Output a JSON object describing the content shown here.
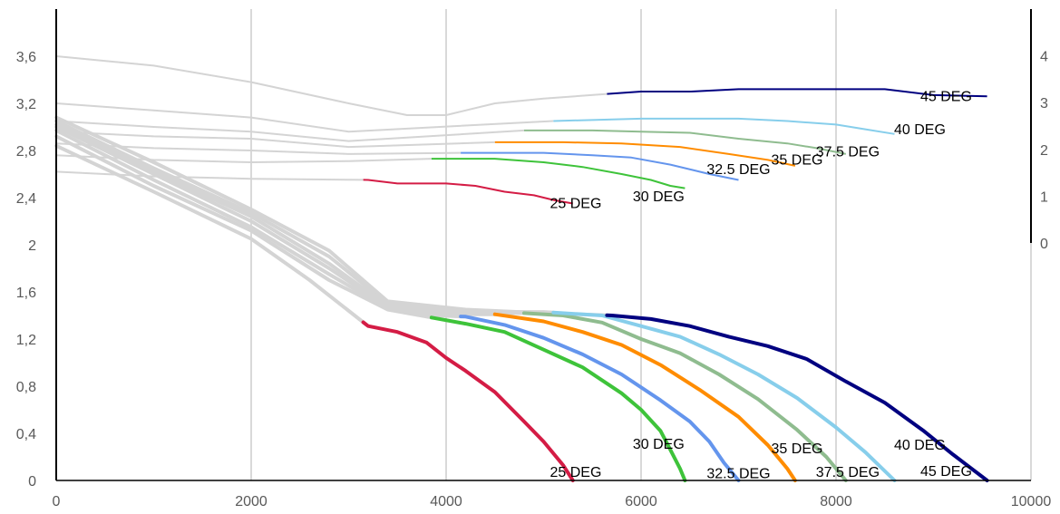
{
  "chart_data": {
    "type": "line",
    "title": "",
    "xlabel": "",
    "ylabel": "",
    "xlim": [
      0,
      10000
    ],
    "ylim": [
      0,
      4.0
    ],
    "y2lim": [
      0,
      5
    ],
    "grid": "vertical",
    "x_ticks": [
      0,
      2000,
      4000,
      6000,
      8000,
      10000
    ],
    "y_ticks": [
      0,
      0.4,
      0.8,
      1.2,
      1.6,
      2,
      2.4,
      2.8,
      3.2,
      3.6
    ],
    "y_tick_labels": [
      "0",
      "0,4",
      "0,8",
      "1,2",
      "1,6",
      "2",
      "2,4",
      "2,8",
      "3,2",
      "3,6"
    ],
    "y2_ticks": [
      0,
      1,
      2,
      3,
      4
    ],
    "y2_tick_labels": [
      "0",
      "1",
      "2",
      "3",
      "4"
    ],
    "series": [
      {
        "name": "25 DEG",
        "color": "#d41c45",
        "lower": [
          [
            0,
            2.84
          ],
          [
            1000,
            2.45
          ],
          [
            2000,
            2.05
          ],
          [
            2600,
            1.7
          ],
          [
            3200,
            1.31
          ],
          [
            3500,
            1.26
          ],
          [
            3800,
            1.17
          ],
          [
            4000,
            1.04
          ],
          [
            4200,
            0.93
          ],
          [
            4500,
            0.75
          ],
          [
            4800,
            0.5
          ],
          [
            5000,
            0.33
          ],
          [
            5200,
            0.13
          ],
          [
            5300,
            0.0
          ]
        ],
        "upper": [
          [
            0,
            2.62
          ],
          [
            1000,
            2.58
          ],
          [
            2000,
            2.56
          ],
          [
            3200,
            2.55
          ],
          [
            3500,
            2.52
          ],
          [
            4000,
            2.52
          ],
          [
            4300,
            2.5
          ],
          [
            4600,
            2.45
          ],
          [
            4900,
            2.42
          ],
          [
            5100,
            2.38
          ],
          [
            5300,
            2.35
          ]
        ],
        "split_x": 3150,
        "label_upper": {
          "x": 5330,
          "y": 2.31
        },
        "label_lower": {
          "x": 5330,
          "y": 0.03
        }
      },
      {
        "name": "30 DEG",
        "color": "#3ec33a",
        "lower": [
          [
            0,
            2.92
          ],
          [
            1000,
            2.5
          ],
          [
            2000,
            2.12
          ],
          [
            2800,
            1.7
          ],
          [
            3400,
            1.45
          ],
          [
            3800,
            1.39
          ],
          [
            4200,
            1.33
          ],
          [
            4600,
            1.26
          ],
          [
            5000,
            1.11
          ],
          [
            5400,
            0.96
          ],
          [
            5800,
            0.74
          ],
          [
            6000,
            0.6
          ],
          [
            6200,
            0.42
          ],
          [
            6300,
            0.26
          ],
          [
            6400,
            0.1
          ],
          [
            6450,
            0.0
          ]
        ],
        "upper": [
          [
            0,
            2.76
          ],
          [
            1000,
            2.72
          ],
          [
            2000,
            2.7
          ],
          [
            3000,
            2.71
          ],
          [
            3850,
            2.73
          ],
          [
            4500,
            2.73
          ],
          [
            5000,
            2.7
          ],
          [
            5400,
            2.66
          ],
          [
            5800,
            2.6
          ],
          [
            6100,
            2.55
          ],
          [
            6300,
            2.5
          ],
          [
            6450,
            2.48
          ]
        ],
        "split_x": 3850,
        "label_upper": {
          "x": 6180,
          "y": 2.37
        },
        "label_lower": {
          "x": 6180,
          "y": 0.27
        }
      },
      {
        "name": "32.5 DEG",
        "color": "#6495ed",
        "lower": [
          [
            0,
            2.97
          ],
          [
            1000,
            2.55
          ],
          [
            2000,
            2.15
          ],
          [
            2800,
            1.75
          ],
          [
            3400,
            1.46
          ],
          [
            3900,
            1.4
          ],
          [
            4200,
            1.39
          ],
          [
            4600,
            1.32
          ],
          [
            5000,
            1.21
          ],
          [
            5400,
            1.07
          ],
          [
            5800,
            0.9
          ],
          [
            6200,
            0.68
          ],
          [
            6500,
            0.5
          ],
          [
            6700,
            0.33
          ],
          [
            6850,
            0.15
          ],
          [
            7000,
            0.0
          ]
        ],
        "upper": [
          [
            0,
            2.86
          ],
          [
            1000,
            2.82
          ],
          [
            2000,
            2.8
          ],
          [
            3000,
            2.77
          ],
          [
            4150,
            2.78
          ],
          [
            5000,
            2.78
          ],
          [
            5500,
            2.76
          ],
          [
            5900,
            2.74
          ],
          [
            6300,
            2.68
          ],
          [
            6700,
            2.6
          ],
          [
            7000,
            2.55
          ]
        ],
        "split_x": 4150,
        "label_upper": {
          "x": 7000,
          "y": 2.6
        },
        "label_lower": {
          "x": 7000,
          "y": 0.02
        }
      },
      {
        "name": "35 DEG",
        "color": "#ff8c00",
        "lower": [
          [
            0,
            3.0
          ],
          [
            1000,
            2.6
          ],
          [
            2000,
            2.2
          ],
          [
            2800,
            1.8
          ],
          [
            3400,
            1.47
          ],
          [
            4000,
            1.41
          ],
          [
            4500,
            1.41
          ],
          [
            5000,
            1.35
          ],
          [
            5400,
            1.26
          ],
          [
            5800,
            1.15
          ],
          [
            6200,
            0.98
          ],
          [
            6600,
            0.77
          ],
          [
            7000,
            0.54
          ],
          [
            7300,
            0.3
          ],
          [
            7500,
            0.1
          ],
          [
            7580,
            0.0
          ]
        ],
        "upper": [
          [
            0,
            2.96
          ],
          [
            1000,
            2.92
          ],
          [
            2000,
            2.9
          ],
          [
            3000,
            2.83
          ],
          [
            4500,
            2.87
          ],
          [
            5200,
            2.87
          ],
          [
            5800,
            2.86
          ],
          [
            6400,
            2.83
          ],
          [
            6900,
            2.77
          ],
          [
            7300,
            2.72
          ],
          [
            7580,
            2.67
          ]
        ],
        "split_x": 4500,
        "label_upper": {
          "x": 7600,
          "y": 2.68
        },
        "label_lower": {
          "x": 7600,
          "y": 0.23
        }
      },
      {
        "name": "37.5 DEG",
        "color": "#8fbc8f",
        "lower": [
          [
            0,
            3.02
          ],
          [
            1000,
            2.62
          ],
          [
            2000,
            2.24
          ],
          [
            2800,
            1.84
          ],
          [
            3400,
            1.48
          ],
          [
            4200,
            1.42
          ],
          [
            4800,
            1.42
          ],
          [
            5200,
            1.4
          ],
          [
            5600,
            1.34
          ],
          [
            6000,
            1.2
          ],
          [
            6400,
            1.08
          ],
          [
            6800,
            0.9
          ],
          [
            7200,
            0.69
          ],
          [
            7600,
            0.43
          ],
          [
            7900,
            0.2
          ],
          [
            8100,
            0.0
          ]
        ],
        "upper": [
          [
            0,
            3.05
          ],
          [
            1000,
            3.0
          ],
          [
            2000,
            2.96
          ],
          [
            3000,
            2.88
          ],
          [
            4800,
            2.97
          ],
          [
            5500,
            2.97
          ],
          [
            6000,
            2.96
          ],
          [
            6500,
            2.95
          ],
          [
            7000,
            2.9
          ],
          [
            7500,
            2.86
          ],
          [
            7800,
            2.82
          ],
          [
            8100,
            2.77
          ]
        ],
        "split_x": 4800,
        "label_upper": {
          "x": 8120,
          "y": 2.75
        },
        "label_lower": {
          "x": 8120,
          "y": 0.03
        }
      },
      {
        "name": "40 DEG",
        "color": "#87ceeb",
        "lower": [
          [
            0,
            3.05
          ],
          [
            1000,
            2.65
          ],
          [
            2000,
            2.27
          ],
          [
            2800,
            1.9
          ],
          [
            3400,
            1.5
          ],
          [
            4200,
            1.43
          ],
          [
            5000,
            1.43
          ],
          [
            5600,
            1.4
          ],
          [
            6000,
            1.31
          ],
          [
            6400,
            1.22
          ],
          [
            6800,
            1.07
          ],
          [
            7200,
            0.9
          ],
          [
            7600,
            0.7
          ],
          [
            8000,
            0.45
          ],
          [
            8300,
            0.24
          ],
          [
            8600,
            0.0
          ]
        ],
        "upper": [
          [
            0,
            3.2
          ],
          [
            1000,
            3.14
          ],
          [
            2000,
            3.08
          ],
          [
            3000,
            2.96
          ],
          [
            5100,
            3.05
          ],
          [
            6000,
            3.07
          ],
          [
            7000,
            3.07
          ],
          [
            7500,
            3.05
          ],
          [
            8000,
            3.02
          ],
          [
            8300,
            2.98
          ],
          [
            8600,
            2.94
          ]
        ],
        "split_x": 5100,
        "label_upper": {
          "x": 8860,
          "y": 2.94
        },
        "label_lower": {
          "x": 8860,
          "y": 0.26
        }
      },
      {
        "name": "45 DEG",
        "color": "#000080",
        "lower": [
          [
            0,
            3.08
          ],
          [
            1000,
            2.7
          ],
          [
            2000,
            2.3
          ],
          [
            2800,
            1.95
          ],
          [
            3400,
            1.52
          ],
          [
            4200,
            1.45
          ],
          [
            5000,
            1.42
          ],
          [
            5700,
            1.4
          ],
          [
            6100,
            1.37
          ],
          [
            6500,
            1.31
          ],
          [
            6900,
            1.22
          ],
          [
            7300,
            1.14
          ],
          [
            7700,
            1.03
          ],
          [
            8100,
            0.84
          ],
          [
            8500,
            0.66
          ],
          [
            8900,
            0.42
          ],
          [
            9200,
            0.22
          ],
          [
            9550,
            0.0
          ]
        ],
        "upper": [
          [
            0,
            3.6
          ],
          [
            1000,
            3.52
          ],
          [
            2000,
            3.38
          ],
          [
            3000,
            3.2
          ],
          [
            3600,
            3.1
          ],
          [
            4000,
            3.1
          ],
          [
            4500,
            3.2
          ],
          [
            5000,
            3.24
          ],
          [
            5650,
            3.28
          ],
          [
            6000,
            3.3
          ],
          [
            6500,
            3.3
          ],
          [
            7000,
            3.32
          ],
          [
            8000,
            3.32
          ],
          [
            8500,
            3.32
          ],
          [
            9000,
            3.27
          ],
          [
            9550,
            3.26
          ]
        ],
        "split_x": 5650,
        "label_upper": {
          "x": 9130,
          "y": 3.22
        },
        "label_lower": {
          "x": 9130,
          "y": 0.04
        }
      }
    ]
  }
}
